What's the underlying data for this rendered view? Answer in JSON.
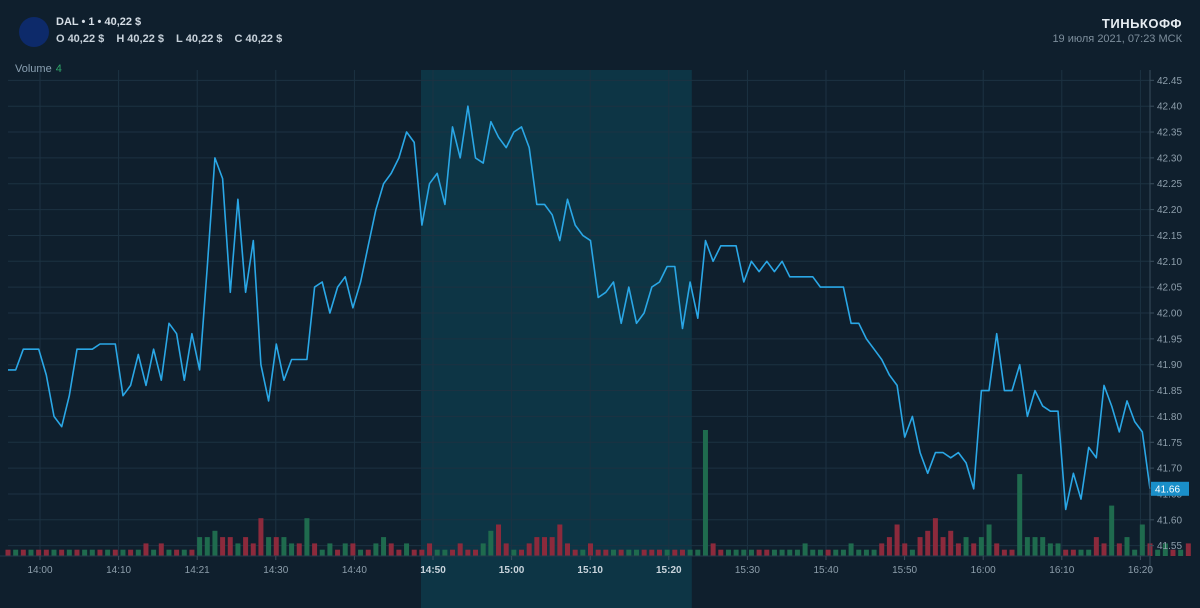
{
  "header": {
    "title": "DAL • 1 • 40,22 $",
    "ohlc": [
      {
        "key": "O",
        "value": "40,22 $"
      },
      {
        "key": "H",
        "value": "40,22 $"
      },
      {
        "key": "L",
        "value": "40,22 $"
      },
      {
        "key": "C",
        "value": "40,22 $"
      }
    ],
    "brand": "ТИНЬКОФФ",
    "datetime": "19 июля 2021, 07:23 МСК"
  },
  "volume_label": {
    "text": "Volume",
    "value": "4"
  },
  "price_badge": "41.66",
  "colors": {
    "background": "#0f1f2d",
    "line": "#2aa7e6",
    "highlight": "#0d3a4a",
    "volume_up": "#1f6b4e",
    "volume_down": "#8c2a3c",
    "badge": "#1a8fc9"
  },
  "chart_data": {
    "type": "line",
    "title": "",
    "xlabel": "",
    "ylabel": "",
    "ylim": [
      41.53,
      42.47
    ],
    "x_ticks": [
      "14:00",
      "14:10",
      "14:21",
      "14:30",
      "14:40",
      "14:50",
      "15:00",
      "15:10",
      "15:20",
      "15:30",
      "15:40",
      "15:50",
      "16:00",
      "16:10",
      "16:20"
    ],
    "bold_x_ticks": [
      "14:50",
      "15:00",
      "15:10",
      "15:20"
    ],
    "y_ticks": [
      "42.45",
      "42.40",
      "42.35",
      "42.30",
      "42.25",
      "42.20",
      "42.15",
      "42.10",
      "42.05",
      "42.00",
      "41.95",
      "41.90",
      "41.85",
      "41.80",
      "41.75",
      "41.70",
      "41.65",
      "41.60",
      "41.55"
    ],
    "highlight_range": [
      "14:50",
      "15:23"
    ],
    "series": [
      {
        "values": [
          41.89,
          41.89,
          41.93,
          41.93,
          41.93,
          41.88,
          41.8,
          41.78,
          41.84,
          41.93,
          41.93,
          41.93,
          41.94,
          41.94,
          41.94,
          41.84,
          41.86,
          41.92,
          41.86,
          41.93,
          41.87,
          41.98,
          41.96,
          41.87,
          41.96,
          41.89,
          42.09,
          42.3,
          42.26,
          42.04,
          42.22,
          42.04,
          42.14,
          41.9,
          41.83,
          41.94,
          41.87,
          41.91,
          41.91,
          41.91,
          42.05,
          42.06,
          42.0,
          42.05,
          42.07,
          42.01,
          42.06,
          42.13,
          42.2,
          42.25,
          42.27,
          42.3,
          42.35,
          42.33,
          42.17,
          42.25,
          42.27,
          42.21,
          42.36,
          42.3,
          42.4,
          42.3,
          42.29,
          42.37,
          42.34,
          42.32,
          42.35,
          42.36,
          42.32,
          42.21,
          42.21,
          42.19,
          42.14,
          42.22,
          42.17,
          42.15,
          42.14,
          42.03,
          42.04,
          42.06,
          41.98,
          42.05,
          41.98,
          42.0,
          42.05,
          42.06,
          42.09,
          42.09,
          41.97,
          42.06,
          41.99,
          42.14,
          42.1,
          42.13,
          42.13,
          42.13,
          42.06,
          42.1,
          42.08,
          42.1,
          42.08,
          42.1,
          42.07,
          42.07,
          42.07,
          42.07,
          42.05,
          42.05,
          42.05,
          42.05,
          41.98,
          41.98,
          41.95,
          41.93,
          41.91,
          41.88,
          41.86,
          41.76,
          41.8,
          41.73,
          41.69,
          41.73,
          41.73,
          41.72,
          41.73,
          41.71,
          41.66,
          41.85,
          41.85,
          41.96,
          41.85,
          41.85,
          41.9,
          41.8,
          41.85,
          41.82,
          41.81,
          41.81,
          41.62,
          41.69,
          41.64,
          41.74,
          41.72,
          41.86,
          41.82,
          41.77,
          41.83,
          41.79,
          41.77,
          41.66
        ]
      }
    ],
    "volume": [
      {
        "v": 1,
        "d": 1
      },
      {
        "v": 1,
        "d": 0
      },
      {
        "v": 1,
        "d": 1
      },
      {
        "v": 1,
        "d": 0
      },
      {
        "v": 1,
        "d": 1
      },
      {
        "v": 1,
        "d": 1
      },
      {
        "v": 1,
        "d": 0
      },
      {
        "v": 1,
        "d": 1
      },
      {
        "v": 1,
        "d": 0
      },
      {
        "v": 1,
        "d": 1
      },
      {
        "v": 1,
        "d": 0
      },
      {
        "v": 1,
        "d": 0
      },
      {
        "v": 1,
        "d": 1
      },
      {
        "v": 1,
        "d": 0
      },
      {
        "v": 1,
        "d": 1
      },
      {
        "v": 1,
        "d": 0
      },
      {
        "v": 1,
        "d": 1
      },
      {
        "v": 1,
        "d": 0
      },
      {
        "v": 2,
        "d": 1
      },
      {
        "v": 1,
        "d": 0
      },
      {
        "v": 2,
        "d": 1
      },
      {
        "v": 1,
        "d": 0
      },
      {
        "v": 1,
        "d": 1
      },
      {
        "v": 1,
        "d": 0
      },
      {
        "v": 1,
        "d": 1
      },
      {
        "v": 3,
        "d": 0
      },
      {
        "v": 3,
        "d": 0
      },
      {
        "v": 4,
        "d": 0
      },
      {
        "v": 3,
        "d": 1
      },
      {
        "v": 3,
        "d": 1
      },
      {
        "v": 2,
        "d": 0
      },
      {
        "v": 3,
        "d": 1
      },
      {
        "v": 2,
        "d": 1
      },
      {
        "v": 6,
        "d": 1
      },
      {
        "v": 3,
        "d": 0
      },
      {
        "v": 3,
        "d": 1
      },
      {
        "v": 3,
        "d": 0
      },
      {
        "v": 2,
        "d": 0
      },
      {
        "v": 2,
        "d": 1
      },
      {
        "v": 6,
        "d": 0
      },
      {
        "v": 2,
        "d": 1
      },
      {
        "v": 1,
        "d": 0
      },
      {
        "v": 2,
        "d": 0
      },
      {
        "v": 1,
        "d": 1
      },
      {
        "v": 2,
        "d": 0
      },
      {
        "v": 2,
        "d": 1
      },
      {
        "v": 1,
        "d": 0
      },
      {
        "v": 1,
        "d": 1
      },
      {
        "v": 2,
        "d": 0
      },
      {
        "v": 3,
        "d": 0
      },
      {
        "v": 2,
        "d": 1
      },
      {
        "v": 1,
        "d": 1
      },
      {
        "v": 2,
        "d": 0
      },
      {
        "v": 1,
        "d": 1
      },
      {
        "v": 1,
        "d": 1
      },
      {
        "v": 2,
        "d": 1
      },
      {
        "v": 1,
        "d": 0
      },
      {
        "v": 1,
        "d": 0
      },
      {
        "v": 1,
        "d": 1
      },
      {
        "v": 2,
        "d": 1
      },
      {
        "v": 1,
        "d": 1
      },
      {
        "v": 1,
        "d": 1
      },
      {
        "v": 2,
        "d": 0
      },
      {
        "v": 4,
        "d": 0
      },
      {
        "v": 5,
        "d": 1
      },
      {
        "v": 2,
        "d": 1
      },
      {
        "v": 1,
        "d": 0
      },
      {
        "v": 1,
        "d": 1
      },
      {
        "v": 2,
        "d": 1
      },
      {
        "v": 3,
        "d": 1
      },
      {
        "v": 3,
        "d": 1
      },
      {
        "v": 3,
        "d": 1
      },
      {
        "v": 5,
        "d": 1
      },
      {
        "v": 2,
        "d": 1
      },
      {
        "v": 1,
        "d": 1
      },
      {
        "v": 1,
        "d": 0
      },
      {
        "v": 2,
        "d": 1
      },
      {
        "v": 1,
        "d": 1
      },
      {
        "v": 1,
        "d": 1
      },
      {
        "v": 1,
        "d": 0
      },
      {
        "v": 1,
        "d": 1
      },
      {
        "v": 1,
        "d": 0
      },
      {
        "v": 1,
        "d": 0
      },
      {
        "v": 1,
        "d": 1
      },
      {
        "v": 1,
        "d": 1
      },
      {
        "v": 1,
        "d": 1
      },
      {
        "v": 1,
        "d": 0
      },
      {
        "v": 1,
        "d": 1
      },
      {
        "v": 1,
        "d": 1
      },
      {
        "v": 1,
        "d": 0
      },
      {
        "v": 1,
        "d": 0
      },
      {
        "v": 20,
        "d": 0
      },
      {
        "v": 2,
        "d": 1
      },
      {
        "v": 1,
        "d": 1
      },
      {
        "v": 1,
        "d": 0
      },
      {
        "v": 1,
        "d": 0
      },
      {
        "v": 1,
        "d": 0
      },
      {
        "v": 1,
        "d": 0
      },
      {
        "v": 1,
        "d": 1
      },
      {
        "v": 1,
        "d": 1
      },
      {
        "v": 1,
        "d": 0
      },
      {
        "v": 1,
        "d": 0
      },
      {
        "v": 1,
        "d": 0
      },
      {
        "v": 1,
        "d": 0
      },
      {
        "v": 2,
        "d": 0
      },
      {
        "v": 1,
        "d": 0
      },
      {
        "v": 1,
        "d": 0
      },
      {
        "v": 1,
        "d": 1
      },
      {
        "v": 1,
        "d": 0
      },
      {
        "v": 1,
        "d": 0
      },
      {
        "v": 2,
        "d": 0
      },
      {
        "v": 1,
        "d": 0
      },
      {
        "v": 1,
        "d": 0
      },
      {
        "v": 1,
        "d": 0
      },
      {
        "v": 2,
        "d": 1
      },
      {
        "v": 3,
        "d": 1
      },
      {
        "v": 5,
        "d": 1
      },
      {
        "v": 2,
        "d": 1
      },
      {
        "v": 1,
        "d": 0
      },
      {
        "v": 3,
        "d": 1
      },
      {
        "v": 4,
        "d": 1
      },
      {
        "v": 6,
        "d": 1
      },
      {
        "v": 3,
        "d": 1
      },
      {
        "v": 4,
        "d": 1
      },
      {
        "v": 2,
        "d": 1
      },
      {
        "v": 3,
        "d": 0
      },
      {
        "v": 2,
        "d": 1
      },
      {
        "v": 3,
        "d": 0
      },
      {
        "v": 5,
        "d": 0
      },
      {
        "v": 2,
        "d": 1
      },
      {
        "v": 1,
        "d": 1
      },
      {
        "v": 1,
        "d": 1
      },
      {
        "v": 13,
        "d": 0
      },
      {
        "v": 3,
        "d": 0
      },
      {
        "v": 3,
        "d": 0
      },
      {
        "v": 3,
        "d": 0
      },
      {
        "v": 2,
        "d": 0
      },
      {
        "v": 2,
        "d": 0
      },
      {
        "v": 1,
        "d": 1
      },
      {
        "v": 1,
        "d": 1
      },
      {
        "v": 1,
        "d": 0
      },
      {
        "v": 1,
        "d": 0
      },
      {
        "v": 3,
        "d": 1
      },
      {
        "v": 2,
        "d": 1
      },
      {
        "v": 8,
        "d": 0
      },
      {
        "v": 2,
        "d": 1
      },
      {
        "v": 3,
        "d": 0
      },
      {
        "v": 1,
        "d": 0
      },
      {
        "v": 5,
        "d": 0
      },
      {
        "v": 2,
        "d": 1
      },
      {
        "v": 1,
        "d": 0
      },
      {
        "v": 2,
        "d": 0
      },
      {
        "v": 1,
        "d": 1
      },
      {
        "v": 1,
        "d": 0
      },
      {
        "v": 2,
        "d": 1
      }
    ]
  }
}
